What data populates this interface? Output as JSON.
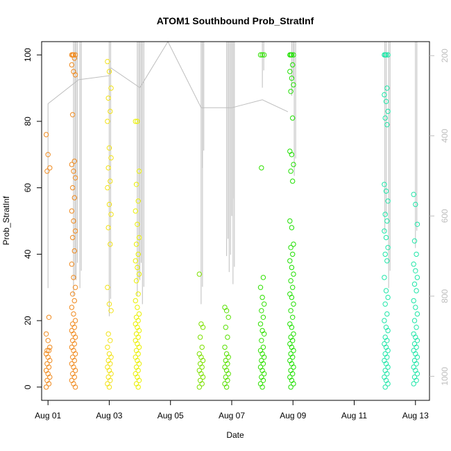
{
  "chart_data": {
    "type": "scatter",
    "title": "ATOM1 Southbound Prob_StratInf",
    "xlabel": "Date",
    "ylabel": "Prob_StratInf",
    "xlim": [
      "2015-07-31T19:00",
      "2015-08-13T11:00"
    ],
    "ylim": [
      -4,
      104
    ],
    "y2lim": [
      1060,
      165
    ],
    "y2reversed": true,
    "grid": false,
    "x_ticks": [
      {
        "date": "2015-08-01",
        "label": "Aug 01"
      },
      {
        "date": "2015-08-03",
        "label": "Aug 03"
      },
      {
        "date": "2015-08-05",
        "label": "Aug 05"
      },
      {
        "date": "2015-08-07",
        "label": "Aug 07"
      },
      {
        "date": "2015-08-09",
        "label": "Aug 09"
      },
      {
        "date": "2015-08-11",
        "label": "Aug 11"
      },
      {
        "date": "2015-08-13",
        "label": "Aug 13"
      }
    ],
    "y_ticks": [
      0,
      20,
      40,
      60,
      80,
      100
    ],
    "y2_ticks": [
      200,
      400,
      600,
      800,
      1000
    ],
    "marker": "open-circle",
    "point_clusters": [
      {
        "t": "2015-08-01T00:00",
        "color": "#f08a1e",
        "values": [
          76,
          70,
          66,
          65,
          21,
          16,
          14,
          12,
          11,
          11,
          10,
          9,
          8,
          7,
          6,
          5,
          4,
          3,
          2,
          1,
          0
        ]
      },
      {
        "t": "2015-08-01T20:00",
        "color": "#f08a1e",
        "values": [
          100,
          100,
          100,
          100,
          99,
          97,
          95,
          94,
          82,
          68,
          67,
          65,
          63,
          60,
          57,
          53,
          50,
          47,
          45,
          41,
          37,
          33,
          30,
          28,
          26,
          24,
          22,
          20,
          19,
          18,
          17,
          16,
          15,
          14,
          13,
          12,
          11,
          10,
          9,
          8,
          7,
          6,
          5,
          4,
          3,
          2,
          1,
          0
        ]
      },
      {
        "t": "2015-08-03T00:00",
        "color": "#f2e216",
        "values": [
          98,
          95,
          90,
          87,
          83,
          80,
          72,
          69,
          66,
          62,
          60,
          55,
          52,
          48,
          43,
          30,
          25,
          23,
          16,
          14,
          12,
          10,
          9,
          8,
          7,
          6,
          5,
          4,
          3,
          2,
          1,
          0
        ]
      },
      {
        "t": "2015-08-03T22:00",
        "color": "#eaf000",
        "values": [
          80,
          80,
          65,
          61,
          56,
          53,
          49,
          45,
          43,
          40,
          38,
          36,
          34,
          32,
          28,
          26,
          24,
          22,
          21,
          20,
          19,
          18,
          17,
          16,
          15,
          14,
          13,
          12,
          11,
          10,
          9,
          8,
          7,
          6,
          5,
          4,
          3,
          2,
          1,
          0
        ]
      },
      {
        "t": "2015-08-06T00:00",
        "color": "#7de000",
        "values": [
          34,
          19,
          18,
          15,
          12,
          10,
          9,
          8,
          7,
          6,
          5,
          4,
          3,
          2,
          1,
          0
        ]
      },
      {
        "t": "2015-08-06T20:00",
        "color": "#57e000",
        "values": [
          24,
          23,
          21,
          18,
          15,
          12,
          10,
          9,
          8,
          7,
          6,
          5,
          4,
          3,
          2,
          1,
          0
        ]
      },
      {
        "t": "2015-08-08T00:00",
        "color": "#2fe000",
        "values": [
          100,
          100,
          100,
          66,
          33,
          30,
          27,
          25,
          23,
          21,
          19,
          17,
          16,
          14,
          12,
          11,
          10,
          9,
          8,
          7,
          6,
          5,
          4,
          3,
          2,
          1,
          0
        ]
      },
      {
        "t": "2015-08-08T23:00",
        "color": "#1fe000",
        "values": [
          100,
          100,
          100,
          100,
          97,
          95,
          93,
          91,
          89,
          81,
          71,
          70,
          67,
          65,
          62,
          50,
          48,
          43,
          42,
          40,
          38,
          36,
          34,
          32,
          30,
          28,
          27,
          25,
          23,
          21,
          19,
          18,
          16,
          15,
          14,
          13,
          12,
          11,
          10,
          9,
          8,
          7,
          6,
          5,
          4,
          3,
          2,
          1,
          0
        ]
      },
      {
        "t": "2015-08-12T01:00",
        "color": "#1fe6a8",
        "values": [
          100,
          100,
          100,
          100,
          90,
          88,
          86,
          83,
          81,
          79,
          61,
          59,
          56,
          52,
          50,
          47,
          45,
          42,
          40,
          38,
          33,
          29,
          27,
          25,
          22,
          20,
          18,
          17,
          15,
          14,
          13,
          12,
          11,
          10,
          9,
          8,
          7,
          6,
          5,
          4,
          3,
          2,
          1,
          0
        ]
      },
      {
        "t": "2015-08-13T00:00",
        "color": "#1fe6a8",
        "values": [
          58,
          55,
          49,
          44,
          40,
          37,
          35,
          33,
          31,
          29,
          26,
          24,
          22,
          20,
          18,
          16,
          15,
          14,
          13,
          12,
          11,
          10,
          9,
          8,
          7,
          6,
          5,
          4,
          3,
          2,
          1
        ]
      }
    ],
    "altitude_line": {
      "color": "#bdbdbd",
      "path": [
        {
          "t": "2015-08-01T00:00",
          "y2": 780
        },
        {
          "t": "2015-08-01T00:00",
          "y2": 320
        },
        {
          "t": "2015-08-02T00:00",
          "y2": 260
        },
        {
          "t": "2015-08-03T00:00",
          "y2": 250
        },
        {
          "t": "2015-08-03T01:00",
          "y2": 230
        },
        {
          "t": "2015-08-04T00:00",
          "y2": 280
        },
        {
          "t": "2015-08-04T22:00",
          "y2": 165
        },
        {
          "t": "2015-08-06T00:00",
          "y2": 330
        },
        {
          "t": "2015-08-07T00:00",
          "y2": 330
        },
        {
          "t": "2015-08-08T00:00",
          "y2": 310
        },
        {
          "t": "2015-08-08T20:00",
          "y2": 340
        }
      ],
      "spikes": [
        {
          "t": "2015-08-01T20:00",
          "bottom": 800
        },
        {
          "t": "2015-08-01T22:00",
          "bottom": 760
        },
        {
          "t": "2015-08-02T01:00",
          "bottom": 780
        },
        {
          "t": "2015-08-03T00:00",
          "bottom": 850
        },
        {
          "t": "2015-08-03T22:00",
          "bottom": 800
        },
        {
          "t": "2015-08-04T00:00",
          "bottom": 760
        },
        {
          "t": "2015-08-04T02:00",
          "bottom": 820
        },
        {
          "t": "2015-08-06T00:00",
          "bottom": 820
        },
        {
          "t": "2015-08-06T01:00",
          "bottom": 480
        },
        {
          "t": "2015-08-06T20:00",
          "bottom": 700
        },
        {
          "t": "2015-08-06T22:00",
          "bottom": 740
        },
        {
          "t": "2015-08-07T00:00",
          "bottom": 600
        },
        {
          "t": "2015-08-07T01:00",
          "bottom": 770
        },
        {
          "t": "2015-08-08T00:00",
          "bottom": 280
        },
        {
          "t": "2015-08-08T23:00",
          "bottom": 300
        },
        {
          "t": "2015-08-09T01:00",
          "bottom": 500
        },
        {
          "t": "2015-08-12T00:00",
          "bottom": 640
        },
        {
          "t": "2015-08-12T03:00",
          "bottom": 780
        },
        {
          "t": "2015-08-13T00:00",
          "bottom": 680
        }
      ]
    }
  }
}
